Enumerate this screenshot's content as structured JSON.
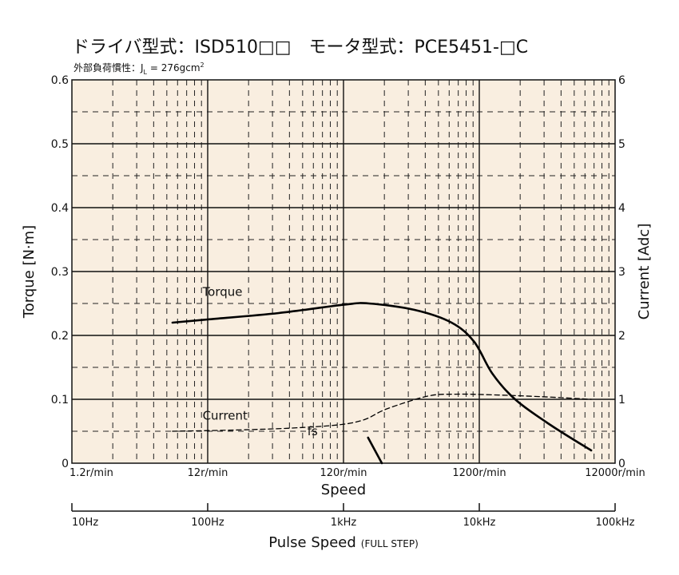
{
  "chart_data": {
    "type": "line",
    "title": "ドライバ型式：ISD510□□　モータ型式：PCE5451-□C",
    "subtitle": "外部負荷慣性：J",
    "subtitle_subscript": "L",
    "subtitle_value": " = 276gcm",
    "subtitle_superscript": "2",
    "xlabel": "Speed",
    "ylabel_left": "Torque [N·m]",
    "ylabel_right": "Current [Adc]",
    "x_scale": "log",
    "x_range_rpm": [
      1.2,
      12000
    ],
    "x_tick_labels": [
      "1.2r/min",
      "12r/min",
      "120r/min",
      "1200r/min",
      "12000r/min"
    ],
    "ylim_left": [
      0,
      0.6
    ],
    "ylim_right": [
      0,
      6
    ],
    "y_tick_labels_left": [
      "0",
      "0.1",
      "0.2",
      "0.3",
      "0.4",
      "0.5",
      "0.6"
    ],
    "y_tick_labels_right": [
      "0",
      "1",
      "2",
      "3",
      "4",
      "5",
      "6"
    ],
    "secondary_axis": {
      "label": "Pulse Speed",
      "label_note": "(FULL STEP)",
      "tick_labels": [
        "10Hz",
        "100Hz",
        "1kHz",
        "10kHz",
        "100kHz"
      ]
    },
    "grid": true,
    "background_color": "#f9eee0",
    "series": [
      {
        "name": "Torque",
        "axis": "left",
        "style": "solid",
        "color": "#000000",
        "points": [
          [
            6.6,
            0.22
          ],
          [
            12,
            0.225
          ],
          [
            40,
            0.235
          ],
          [
            120,
            0.248
          ],
          [
            185,
            0.25
          ],
          [
            400,
            0.24
          ],
          [
            750,
            0.22
          ],
          [
            1100,
            0.19
          ],
          [
            1500,
            0.14
          ],
          [
            2200,
            0.1
          ],
          [
            4000,
            0.06
          ],
          [
            8000,
            0.02
          ]
        ]
      },
      {
        "name": "Current",
        "axis": "right",
        "style": "dashed",
        "color": "#000000",
        "points": [
          [
            6.6,
            0.5
          ],
          [
            20,
            0.52
          ],
          [
            50,
            0.55
          ],
          [
            110,
            0.6
          ],
          [
            170,
            0.68
          ],
          [
            250,
            0.85
          ],
          [
            500,
            1.05
          ],
          [
            800,
            1.08
          ],
          [
            1500,
            1.07
          ],
          [
            3500,
            1.04
          ],
          [
            8000,
            1.0
          ]
        ]
      }
    ],
    "annotations": [
      {
        "text": "Torque",
        "x": 11,
        "y": 0.262
      },
      {
        "text": "Current",
        "x": 11,
        "y": 0.068
      },
      {
        "text": "fs",
        "x": 65,
        "y": 0.044
      }
    ],
    "fs_marker": {
      "points": [
        [
          182,
          0.04
        ],
        [
          230,
          0.0
        ]
      ]
    }
  }
}
